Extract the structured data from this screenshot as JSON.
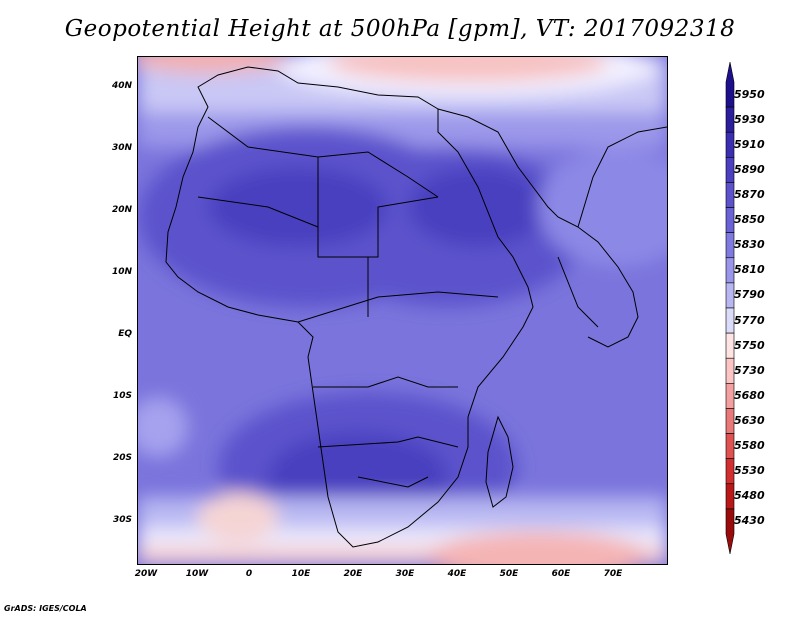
{
  "title": "Geopotential Height at 500hPa [gpm], VT: 2017092318",
  "credit": "GrADS: IGES/COLA",
  "map": {
    "lat_labels": [
      "40N",
      "30N",
      "20N",
      "10N",
      "EQ",
      "10S",
      "20S",
      "30S"
    ],
    "lat_values": [
      40,
      30,
      20,
      10,
      0,
      -10,
      -20,
      -30
    ],
    "lon_labels": [
      "20W",
      "10W",
      "0",
      "10E",
      "20E",
      "30E",
      "40E",
      "50E",
      "60E",
      "70E"
    ],
    "lon_values": [
      -20,
      -10,
      0,
      10,
      20,
      30,
      40,
      50,
      60,
      70
    ],
    "lon_range": [
      -22,
      80
    ],
    "lat_range": [
      -37,
      45
    ]
  },
  "colorbar": {
    "levels": [
      "5950",
      "5930",
      "5910",
      "5890",
      "5870",
      "5850",
      "5830",
      "5810",
      "5790",
      "5770",
      "5750",
      "5730",
      "5680",
      "5630",
      "5580",
      "5530",
      "5480",
      "5430"
    ],
    "colors": [
      "#1e0f8c",
      "#2c1f9e",
      "#3a2fb0",
      "#4a40c0",
      "#5b52cc",
      "#6a63d6",
      "#7f7ae0",
      "#9a97ea",
      "#b8b7f2",
      "#dcdcfa",
      "#ffe4e4",
      "#fcc4c4",
      "#f3a0a0",
      "#e97878",
      "#df5252",
      "#d23030",
      "#b81818",
      "#9a0c0c"
    ]
  }
}
